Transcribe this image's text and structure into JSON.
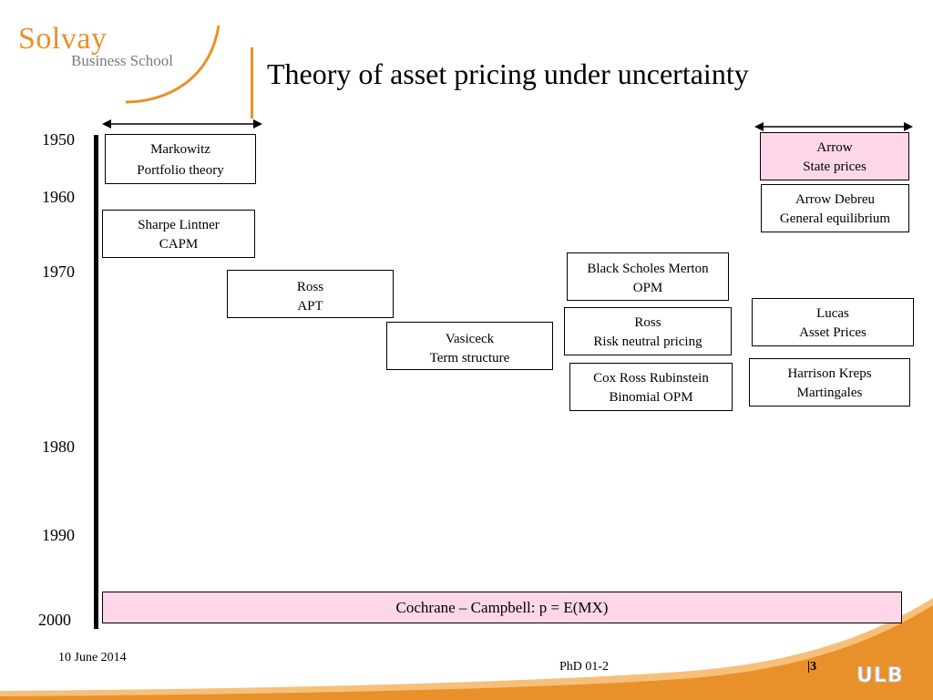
{
  "logo": {
    "name": "Solvay",
    "subtitle": "Business School"
  },
  "title": "Theory of asset pricing under uncertainty",
  "years": [
    "1950",
    "1960",
    "1970",
    "1980",
    "1990",
    "2000"
  ],
  "boxes": {
    "markowitz": [
      "Markowitz",
      "Portfolio theory"
    ],
    "sharpe": [
      "Sharpe Lintner",
      "CAPM"
    ],
    "ross_apt": [
      "Ross",
      "APT"
    ],
    "vasicek": [
      "Vasiceck",
      "Term structure"
    ],
    "bsm": [
      "Black Scholes Merton",
      "OPM"
    ],
    "ross_rn": [
      "Ross",
      "Risk neutral pricing"
    ],
    "crr": [
      "Cox Ross Rubinstein",
      "Binomial OPM"
    ],
    "arrow": [
      "Arrow",
      "State prices"
    ],
    "arrow_debreu": [
      "Arrow Debreu",
      "General equilibrium"
    ],
    "lucas": [
      "Lucas",
      "Asset Prices"
    ],
    "harrison": [
      "Harrison Kreps",
      "Martingales"
    ]
  },
  "banner": "Cochrane – Campbell: p = E(MX)",
  "footer": {
    "date": "10 June 2014",
    "course": "PhD 01-2",
    "page": "|3",
    "brand": "ULB"
  },
  "colors": {
    "accent": "#e8912a",
    "highlight": "#fdd6ea"
  }
}
